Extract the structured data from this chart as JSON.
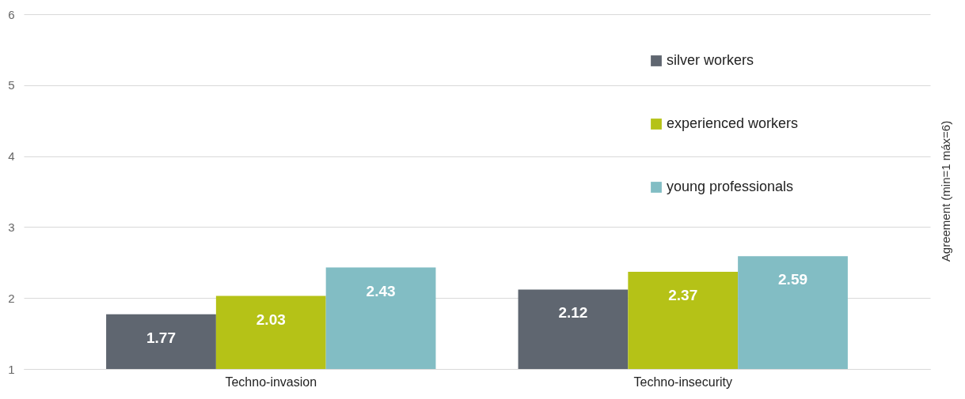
{
  "chart_data": {
    "type": "bar",
    "ylabel": "Agreement (min=1 máx=6)",
    "categories": [
      "Techno-invasion",
      "Techno-insecurity"
    ],
    "series": [
      {
        "name": "silver workers",
        "color": "#5f6670",
        "values": [
          1.77,
          2.12
        ]
      },
      {
        "name": "experienced workers",
        "color": "#b5c217",
        "values": [
          2.03,
          2.37
        ]
      },
      {
        "name": "young professionals",
        "color": "#82bdc4",
        "values": [
          2.43,
          2.59
        ]
      }
    ],
    "ylim": [
      1,
      6
    ],
    "yticks": [
      1,
      2,
      3,
      4,
      5,
      6
    ],
    "grid": "y",
    "legend": "top right",
    "data_labels": true
  }
}
